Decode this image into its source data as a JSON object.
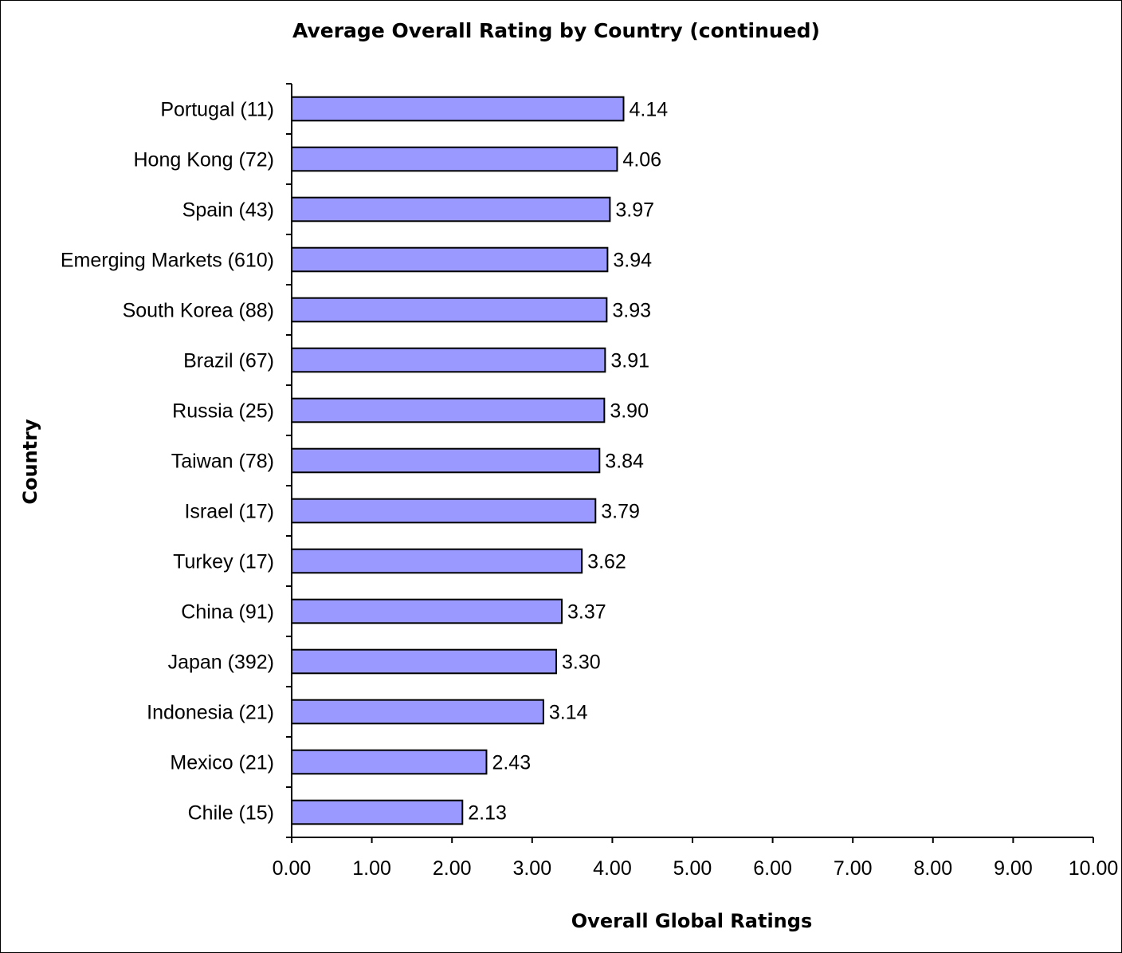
{
  "chart_data": {
    "type": "bar",
    "orientation": "horizontal",
    "title": "Average Overall Rating by Country (continued)",
    "xlabel": "Overall Global Ratings",
    "ylabel": "Country",
    "xlim": [
      0,
      10
    ],
    "x_ticks": [
      "0.00",
      "1.00",
      "2.00",
      "3.00",
      "4.00",
      "5.00",
      "6.00",
      "7.00",
      "8.00",
      "9.00",
      "10.00"
    ],
    "grid": false,
    "legend": "none",
    "bar_color": "#9999ff",
    "bar_edge_color": "#000000",
    "categories": [
      "Portugal (11)",
      "Hong Kong (72)",
      "Spain (43)",
      "Emerging Markets (610)",
      "South Korea (88)",
      "Brazil (67)",
      "Russia (25)",
      "Taiwan (78)",
      "Israel (17)",
      "Turkey (17)",
      "China (91)",
      "Japan (392)",
      "Indonesia (21)",
      "Mexico (21)",
      "Chile (15)"
    ],
    "values": [
      4.14,
      4.06,
      3.97,
      3.94,
      3.93,
      3.91,
      3.9,
      3.84,
      3.79,
      3.62,
      3.37,
      3.3,
      3.14,
      2.43,
      2.13
    ],
    "data_labels": [
      "4.14",
      "4.06",
      "3.97",
      "3.94",
      "3.93",
      "3.91",
      "3.90",
      "3.84",
      "3.79",
      "3.62",
      "3.37",
      "3.30",
      "3.14",
      "2.43",
      "2.13"
    ]
  }
}
